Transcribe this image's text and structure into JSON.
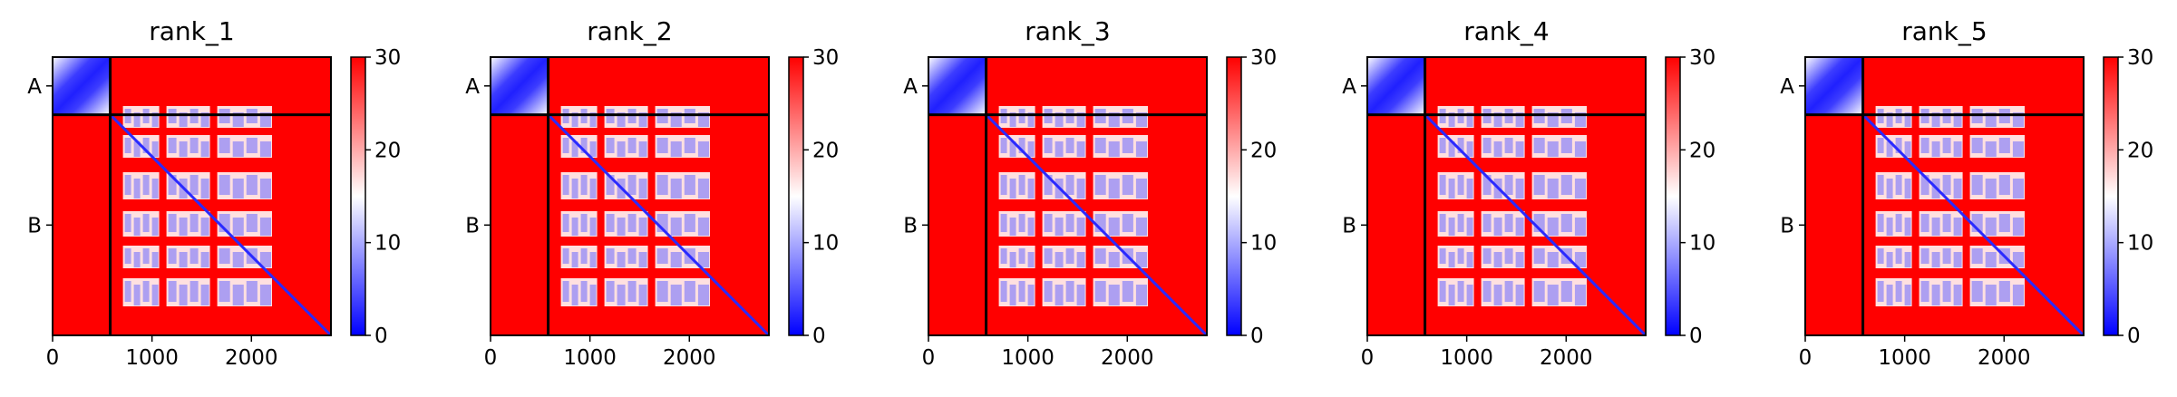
{
  "chart_data": [
    {
      "type": "heatmap",
      "title": "rank_1",
      "x_ticks": [
        0,
        1000,
        2000
      ],
      "x_tick_labels": [
        "0",
        "1000",
        "2000"
      ],
      "xlim": [
        0,
        2800
      ],
      "chain_boundary": 580,
      "y_tick_labels": [
        "A",
        "B"
      ],
      "colorbar": {
        "min": 0,
        "max": 30,
        "ticks": [
          "0",
          "10",
          "20",
          "30"
        ]
      },
      "colormap": [
        "#0000ff",
        "#ffffff",
        "#ff0000"
      ]
    },
    {
      "type": "heatmap",
      "title": "rank_2",
      "x_ticks": [
        0,
        1000,
        2000
      ],
      "x_tick_labels": [
        "0",
        "1000",
        "2000"
      ],
      "xlim": [
        0,
        2800
      ],
      "chain_boundary": 580,
      "y_tick_labels": [
        "A",
        "B"
      ],
      "colorbar": {
        "min": 0,
        "max": 30,
        "ticks": [
          "0",
          "10",
          "20",
          "30"
        ]
      },
      "colormap": [
        "#0000ff",
        "#ffffff",
        "#ff0000"
      ]
    },
    {
      "type": "heatmap",
      "title": "rank_3",
      "x_ticks": [
        0,
        1000,
        2000
      ],
      "x_tick_labels": [
        "0",
        "1000",
        "2000"
      ],
      "xlim": [
        0,
        2800
      ],
      "chain_boundary": 580,
      "y_tick_labels": [
        "A",
        "B"
      ],
      "colorbar": {
        "min": 0,
        "max": 30,
        "ticks": [
          "0",
          "10",
          "20",
          "30"
        ]
      },
      "colormap": [
        "#0000ff",
        "#ffffff",
        "#ff0000"
      ]
    },
    {
      "type": "heatmap",
      "title": "rank_4",
      "x_ticks": [
        0,
        1000,
        2000
      ],
      "x_tick_labels": [
        "0",
        "1000",
        "2000"
      ],
      "xlim": [
        0,
        2800
      ],
      "chain_boundary": 580,
      "y_tick_labels": [
        "A",
        "B"
      ],
      "colorbar": {
        "min": 0,
        "max": 30,
        "ticks": [
          "0",
          "10",
          "20",
          "30"
        ]
      },
      "colormap": [
        "#0000ff",
        "#ffffff",
        "#ff0000"
      ]
    },
    {
      "type": "heatmap",
      "title": "rank_5",
      "x_ticks": [
        0,
        1000,
        2000
      ],
      "x_tick_labels": [
        "0",
        "1000",
        "2000"
      ],
      "xlim": [
        0,
        2800
      ],
      "chain_boundary": 580,
      "y_tick_labels": [
        "A",
        "B"
      ],
      "colorbar": {
        "min": 0,
        "max": 30,
        "ticks": [
          "0",
          "10",
          "20",
          "30"
        ]
      },
      "colormap": [
        "#0000ff",
        "#ffffff",
        "#ff0000"
      ]
    }
  ]
}
